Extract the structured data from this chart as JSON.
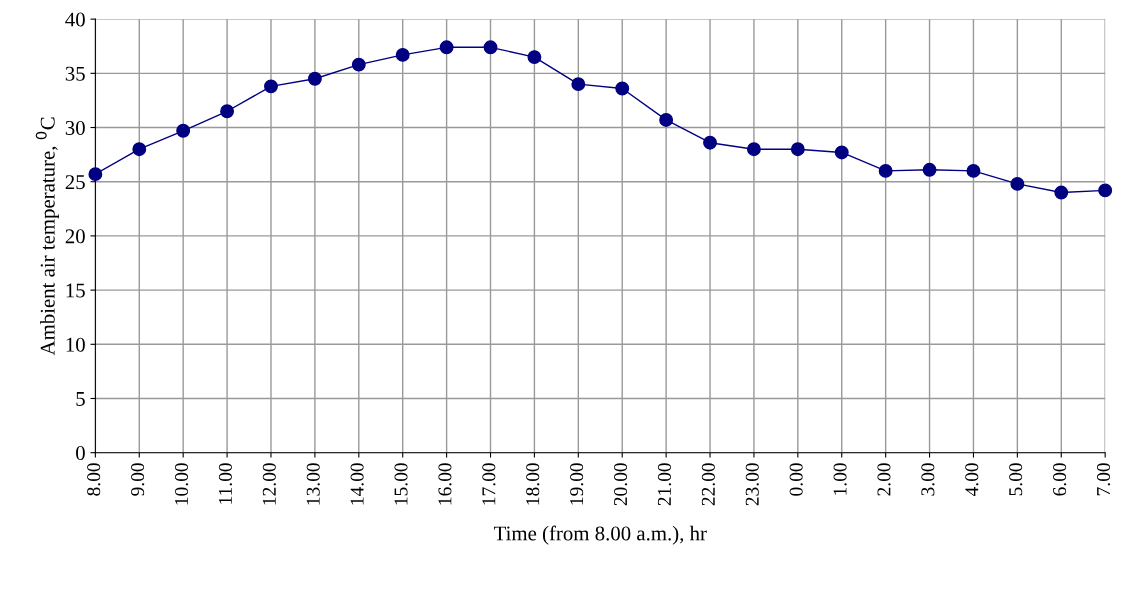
{
  "chart_data": {
    "type": "line",
    "xlabel": "Time (from 8.00 a.m.), hr",
    "ylabel": "Ambient air temperature, $^{0}$C",
    "categories": [
      "8.00",
      "9.00",
      "10.00",
      "11.00",
      "12.00",
      "13.00",
      "14.00",
      "15.00",
      "16.00",
      "17.00",
      "18.00",
      "19.00",
      "20.00",
      "21.00",
      "22.00",
      "23.00",
      "0.00",
      "1.00",
      "2.00",
      "3.00",
      "4.00",
      "5.00",
      "6.00",
      "7.00"
    ],
    "series": [
      {
        "color": "#000080",
        "values": [
          25.7,
          28.0,
          29.7,
          31.5,
          33.8,
          34.5,
          35.8,
          36.7,
          37.4,
          37.4,
          36.5,
          34.0,
          33.6,
          30.7,
          28.6,
          28.0,
          28.0,
          27.7,
          26.0,
          26.1,
          26.0,
          24.8,
          24.0,
          24.2
        ]
      }
    ],
    "ylim": [
      0,
      40
    ],
    "yticks": [
      0,
      5,
      10,
      15,
      20,
      25,
      30,
      35,
      40
    ],
    "grid": true,
    "marker": "circle",
    "line_style": "solid"
  }
}
